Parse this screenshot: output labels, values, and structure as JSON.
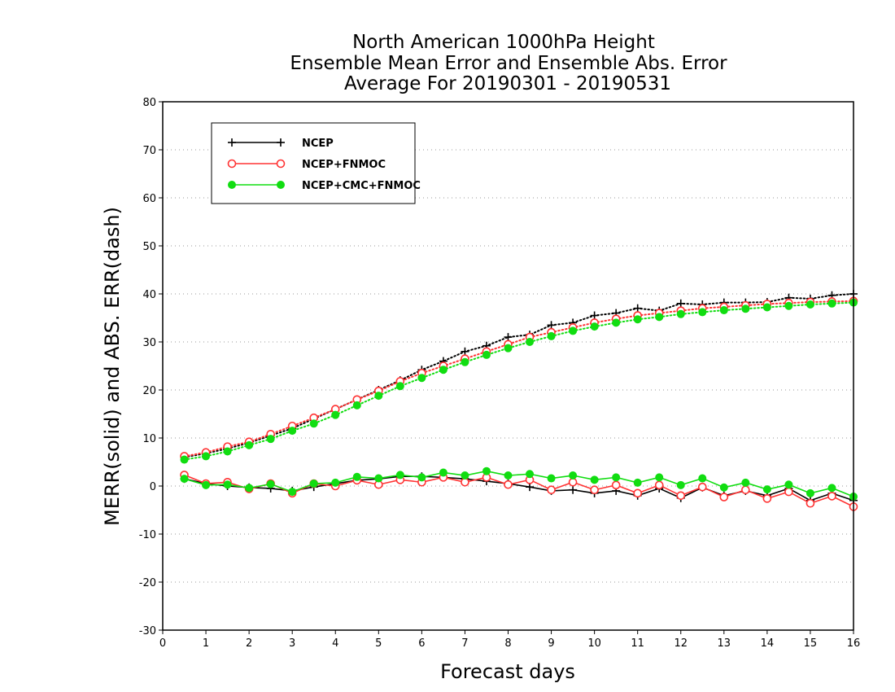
{
  "chart_data": {
    "type": "line",
    "title": [
      "North American 1000hPa Height",
      "Ensemble Mean Error and Ensemble Abs. Error",
      "Average For 20190301 - 20190531"
    ],
    "xlabel": "Forecast days",
    "ylabel": "MERR(solid) and ABS. ERR(dash)",
    "xlim": [
      0,
      16
    ],
    "ylim": [
      -30,
      80
    ],
    "xticks": [
      0,
      1,
      2,
      3,
      4,
      5,
      6,
      7,
      8,
      9,
      10,
      11,
      12,
      13,
      14,
      15,
      16
    ],
    "yticks": [
      -30,
      -20,
      -10,
      0,
      10,
      20,
      30,
      40,
      50,
      60,
      70,
      80
    ],
    "grid": "horizontal dotted",
    "legend_position": "top-left",
    "x": [
      0.5,
      1,
      1.5,
      2,
      2.5,
      3,
      3.5,
      4,
      4.5,
      5,
      5.5,
      6,
      6.5,
      7,
      7.5,
      8,
      8.5,
      9,
      9.5,
      10,
      10.5,
      11,
      11.5,
      12,
      12.5,
      13,
      13.5,
      14,
      14.5,
      15,
      15.5,
      16
    ],
    "series": [
      {
        "name": "NCEP",
        "color": "#000000",
        "marker": "plus",
        "merr": [
          1.5,
          0.5,
          0,
          -0.3,
          -0.5,
          -1,
          -0.2,
          0.5,
          1.2,
          1.5,
          2,
          2,
          1.8,
          1.5,
          1,
          0.5,
          -0.2,
          -1,
          -0.8,
          -1.5,
          -1,
          -2,
          -0.5,
          -2.5,
          -0.3,
          -2,
          -1,
          -2,
          -0.5,
          -3,
          -1.5,
          -3
        ],
        "abs_err": [
          6,
          6.8,
          7.8,
          9,
          10.5,
          12,
          14,
          16,
          18,
          20,
          22,
          24.2,
          26,
          28,
          29.2,
          31,
          31.5,
          33.5,
          34,
          35.5,
          36,
          37,
          36.5,
          38,
          37.8,
          38.2,
          38.2,
          38.3,
          39.2,
          39,
          39.7,
          40
        ]
      },
      {
        "name": "NCEP+FNMOC",
        "color": "#ff3333",
        "marker": "open-circle",
        "merr": [
          2.3,
          0.5,
          0.8,
          -0.6,
          0.5,
          -1.5,
          0.5,
          0,
          1.2,
          0.3,
          1.3,
          0.8,
          1.8,
          0.8,
          1.8,
          0.3,
          1.3,
          -0.8,
          0.8,
          -0.8,
          0.2,
          -1.5,
          0.2,
          -2,
          -0.2,
          -2.3,
          -0.8,
          -2.6,
          -1.2,
          -3.6,
          -2.1,
          -4.3
        ],
        "abs_err": [
          6.2,
          7,
          8.2,
          9.2,
          10.8,
          12.5,
          14.2,
          16,
          18,
          19.8,
          21.8,
          23.5,
          25,
          26.5,
          28,
          29.5,
          31,
          32,
          33,
          34,
          34.8,
          35.5,
          36,
          36.5,
          37,
          37.3,
          37.6,
          37.9,
          38.1,
          38.3,
          38.4,
          38.5
        ]
      },
      {
        "name": "NCEP+CMC+FNMOC",
        "color": "#11dd11",
        "marker": "filled-circle",
        "merr": [
          1.5,
          0.2,
          0.3,
          -0.4,
          0.4,
          -1.2,
          0.5,
          0.7,
          1.9,
          1.6,
          2.3,
          1.8,
          2.8,
          2.2,
          3.1,
          2.2,
          2.5,
          1.6,
          2.2,
          1.3,
          1.8,
          0.7,
          1.8,
          0.2,
          1.6,
          -0.3,
          0.7,
          -0.7,
          0.3,
          -1.5,
          -0.4,
          -2.2
        ],
        "abs_err": [
          5.5,
          6.2,
          7.2,
          8.5,
          9.8,
          11.5,
          13,
          14.8,
          16.8,
          18.8,
          20.8,
          22.5,
          24.2,
          25.8,
          27.3,
          28.7,
          30,
          31.2,
          32.3,
          33.2,
          34,
          34.7,
          35.2,
          35.8,
          36.2,
          36.6,
          36.9,
          37.2,
          37.5,
          37.8,
          38,
          38.2
        ]
      }
    ]
  }
}
